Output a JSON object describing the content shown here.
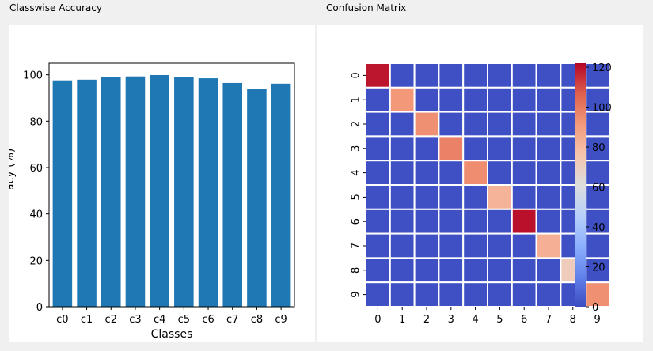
{
  "window": {
    "left_panel_title": "Classwise Accuracy",
    "right_panel_title": "Confusion Matrix"
  },
  "chart_data": [
    {
      "type": "bar",
      "title": "",
      "categories": [
        "c0",
        "c1",
        "c2",
        "c3",
        "c4",
        "c5",
        "c6",
        "c7",
        "c8",
        "c9"
      ],
      "values": [
        97.6,
        97.9,
        98.9,
        99.3,
        99.9,
        98.9,
        98.5,
        96.5,
        93.8,
        96.2
      ],
      "xlabel": "Classes",
      "ylabel": "Accuracy (%)",
      "ylim": [
        0,
        105
      ],
      "yticks": [
        0,
        20,
        40,
        60,
        80,
        100
      ],
      "color": "#1f77b4",
      "grid": false
    },
    {
      "type": "heatmap",
      "title": "",
      "x_labels": [
        "0",
        "1",
        "2",
        "3",
        "4",
        "5",
        "6",
        "7",
        "8",
        "9"
      ],
      "y_labels": [
        "0",
        "1",
        "2",
        "3",
        "4",
        "5",
        "6",
        "7",
        "8",
        "9"
      ],
      "diagonal_values": [
        119,
        92,
        94,
        98,
        95,
        82,
        120,
        84,
        72,
        94
      ],
      "off_diagonal_value": 1,
      "colormap": "coolwarm",
      "vmin": 0,
      "vmax": 122,
      "colorbar_ticks": [
        0,
        20,
        40,
        60,
        80,
        100,
        120
      ],
      "cell_border_color": "#ffffff"
    }
  ]
}
